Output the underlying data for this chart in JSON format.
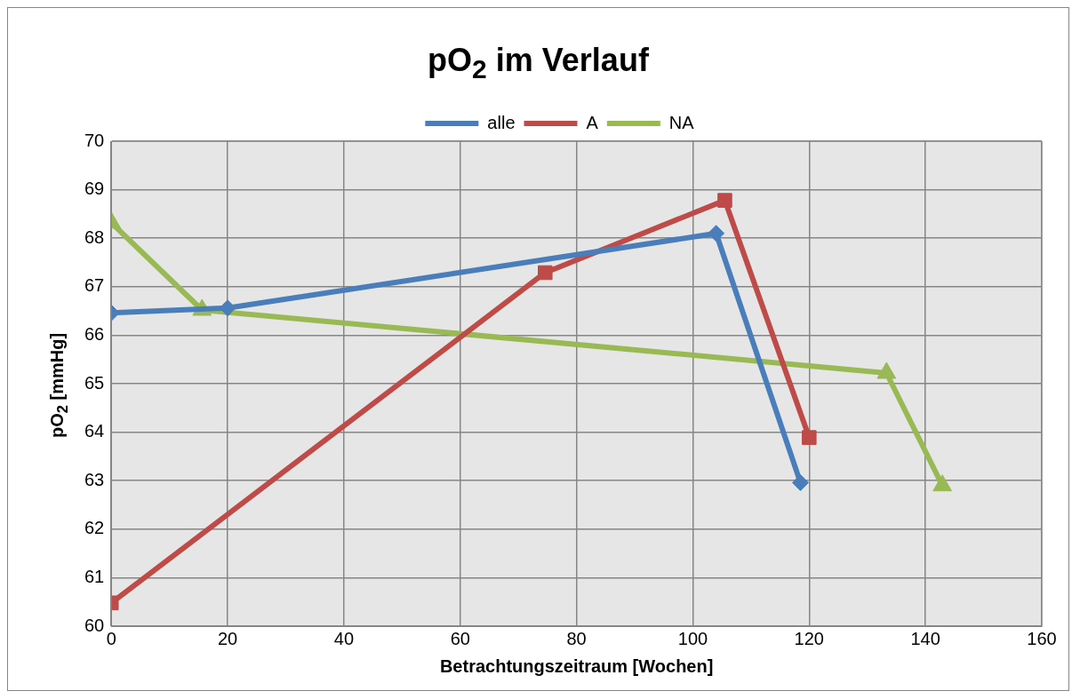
{
  "chart_data": {
    "type": "line",
    "title": "pO$_{2}$ im Verlauf",
    "xlabel": "Betrachtungszeitraum [Wochen]",
    "ylabel": "pO$_{2}$ [mmHg]",
    "xlim": [
      0,
      160
    ],
    "xticks": [
      0,
      20,
      40,
      60,
      80,
      100,
      120,
      140,
      160
    ],
    "ylim": [
      60,
      70
    ],
    "yticks": [
      60,
      61,
      62,
      63,
      64,
      65,
      66,
      67,
      68,
      69,
      70
    ],
    "grid": true,
    "legend": "top",
    "series": [
      {
        "name": "alle",
        "color": "#4a7ebb",
        "marker": "diamond",
        "x": [
          0,
          20,
          104,
          118.5
        ],
        "values": [
          66.46,
          66.56,
          68.1,
          62.96
        ]
      },
      {
        "name": "A",
        "color": "#be4b48",
        "marker": "square",
        "x": [
          0,
          74.6,
          105.5,
          120
        ],
        "values": [
          60.48,
          67.29,
          68.78,
          63.89
        ]
      },
      {
        "name": "NA",
        "color": "#98b954",
        "marker": "triangle",
        "x": [
          0,
          15.6,
          133.3,
          142.9
        ],
        "values": [
          68.32,
          66.52,
          65.22,
          62.9
        ]
      }
    ]
  }
}
